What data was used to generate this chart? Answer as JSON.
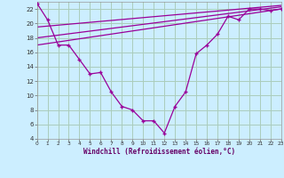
{
  "xlabel": "Windchill (Refroidissement éolien,°C)",
  "background_color": "#cceeff",
  "grid_color": "#aaccbb",
  "line_color": "#990099",
  "xlim": [
    0,
    23
  ],
  "ylim": [
    4,
    23
  ],
  "yticks": [
    4,
    6,
    8,
    10,
    12,
    14,
    16,
    18,
    20,
    22
  ],
  "xticks": [
    0,
    1,
    2,
    3,
    4,
    5,
    6,
    7,
    8,
    9,
    10,
    11,
    12,
    13,
    14,
    15,
    16,
    17,
    18,
    19,
    20,
    21,
    22,
    23
  ],
  "series1_x": [
    0,
    1,
    2,
    3,
    4,
    5,
    6,
    7,
    8,
    9,
    10,
    11,
    12,
    13,
    14,
    15,
    16,
    17,
    18,
    19,
    20,
    21,
    22,
    23
  ],
  "series1_y": [
    22.8,
    20.5,
    17.0,
    17.0,
    15.0,
    13.0,
    13.2,
    10.5,
    8.5,
    8.0,
    6.5,
    6.5,
    4.8,
    8.5,
    10.5,
    15.8,
    17.0,
    18.5,
    21.0,
    20.5,
    22.0,
    22.0,
    21.8,
    22.0
  ],
  "series2_x": [
    0,
    23
  ],
  "series2_y": [
    17.0,
    22.0
  ],
  "series3_x": [
    0,
    23
  ],
  "series3_y": [
    18.0,
    22.3
  ],
  "series4_x": [
    0,
    23
  ],
  "series4_y": [
    19.5,
    22.5
  ]
}
